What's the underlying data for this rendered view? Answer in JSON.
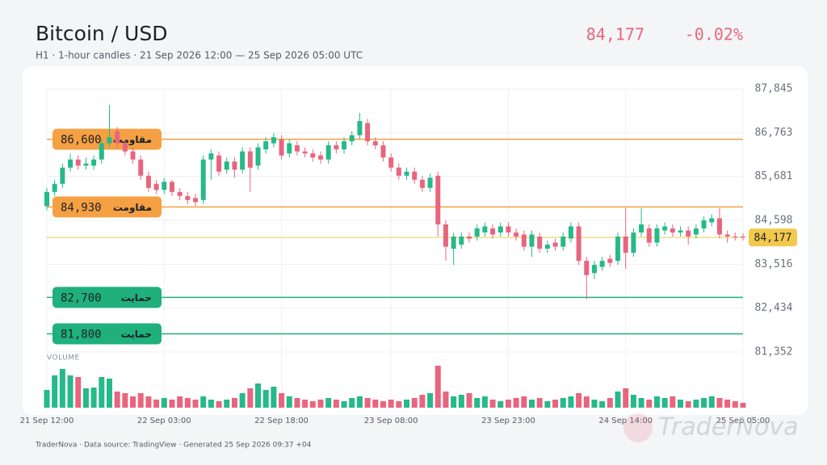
{
  "chart_data": {
    "type": "candlestick",
    "title": "Bitcoin / USD",
    "subtitle": "H1 · 1-hour candles · 21 Sep 2026 12:00 — 25 Sep 2026 05:00 UTC",
    "last_price": 84177,
    "last_price_label": "84,177",
    "change": -0.02,
    "change_label": "-0.02%",
    "volume_title": "VOLUME",
    "footer": "TraderNova · Data source: TradingView · Generated 25 Sep 2026 09:37 +04",
    "watermark": "TraderNova",
    "up_color": "#26b98a",
    "down_color": "#e8657e",
    "ylim": [
      81352,
      87845
    ],
    "yticks": [
      {
        "value": 87845,
        "label": "87,845"
      },
      {
        "value": 86763,
        "label": "86,763"
      },
      {
        "value": 85681,
        "label": "85,681"
      },
      {
        "value": 84598,
        "label": "84,598"
      },
      {
        "value": 83516,
        "label": "83,516"
      },
      {
        "value": 82434,
        "label": "82,434"
      },
      {
        "value": 81352,
        "label": "81,352"
      }
    ],
    "xlim": [
      0,
      89
    ],
    "xticks": [
      {
        "value": 0,
        "label": "21 Sep 12:00"
      },
      {
        "value": 15,
        "label": "22 Sep 03:00"
      },
      {
        "value": 30,
        "label": "22 Sep 18:00"
      },
      {
        "value": 44,
        "label": "23 Sep 08:00"
      },
      {
        "value": 59,
        "label": "23 Sep 23:00"
      },
      {
        "value": 74,
        "label": "24 Sep 14:00"
      },
      {
        "value": 89,
        "label": "25 Sep 05:00"
      }
    ],
    "grid": true,
    "levels": [
      {
        "name": "مقاومت",
        "value": 86600,
        "label": "86,600",
        "color": "#f5a043"
      },
      {
        "name": "مقاومت",
        "value": 84930,
        "label": "84,930",
        "color": "#f5a043"
      },
      {
        "name": "حمایت",
        "value": 82700,
        "label": "82,700",
        "color": "#1fb07e"
      },
      {
        "name": "حمایت",
        "value": 81800,
        "label": "81,800",
        "color": "#1fb07e"
      }
    ],
    "candles": [
      [
        84950,
        85400,
        84850,
        85300
      ],
      [
        85300,
        85600,
        85200,
        85500
      ],
      [
        85500,
        86000,
        85400,
        85900
      ],
      [
        85900,
        86250,
        85800,
        86100
      ],
      [
        86100,
        86200,
        85850,
        85950
      ],
      [
        85950,
        86150,
        85850,
        86000
      ],
      [
        85950,
        86200,
        85850,
        86100
      ],
      [
        86100,
        86600,
        86000,
        86500
      ],
      [
        86500,
        87450,
        86400,
        86650
      ],
      [
        86800,
        86900,
        86400,
        86500
      ],
      [
        86500,
        86600,
        86200,
        86300
      ],
      [
        86300,
        86400,
        86000,
        86100
      ],
      [
        86100,
        86200,
        85600,
        85700
      ],
      [
        85700,
        85800,
        85300,
        85400
      ],
      [
        85500,
        85600,
        85250,
        85350
      ],
      [
        85350,
        85650,
        85250,
        85550
      ],
      [
        85550,
        85600,
        85200,
        85300
      ],
      [
        85300,
        85400,
        85100,
        85200
      ],
      [
        85200,
        85300,
        85000,
        85100
      ],
      [
        85150,
        85250,
        84950,
        85050
      ],
      [
        85100,
        86200,
        85000,
        86100
      ],
      [
        86100,
        86350,
        85600,
        86250
      ],
      [
        86200,
        86300,
        85700,
        85800
      ],
      [
        85850,
        86150,
        85750,
        86050
      ],
      [
        86050,
        86150,
        85650,
        85850
      ],
      [
        85850,
        86400,
        85750,
        86300
      ],
      [
        86300,
        86400,
        85300,
        85900
      ],
      [
        85950,
        86500,
        85850,
        86400
      ],
      [
        86350,
        86650,
        86250,
        86550
      ],
      [
        86500,
        86750,
        86400,
        86650
      ],
      [
        86600,
        86700,
        86100,
        86200
      ],
      [
        86250,
        86600,
        86150,
        86500
      ],
      [
        86450,
        86550,
        86200,
        86300
      ],
      [
        86300,
        86400,
        86150,
        86250
      ],
      [
        86250,
        86350,
        86050,
        86150
      ],
      [
        86200,
        86300,
        86000,
        86100
      ],
      [
        86100,
        86550,
        86000,
        86450
      ],
      [
        86450,
        86550,
        86250,
        86350
      ],
      [
        86350,
        86650,
        86250,
        86550
      ],
      [
        86550,
        86800,
        86450,
        86700
      ],
      [
        86700,
        87250,
        86600,
        87050
      ],
      [
        87000,
        87100,
        86450,
        86550
      ],
      [
        86550,
        86650,
        86350,
        86450
      ],
      [
        86450,
        86550,
        86050,
        86150
      ],
      [
        86150,
        86250,
        85800,
        85900
      ],
      [
        85900,
        86000,
        85600,
        85700
      ],
      [
        85700,
        85900,
        85600,
        85800
      ],
      [
        85800,
        85900,
        85500,
        85600
      ],
      [
        85600,
        85700,
        85300,
        85400
      ],
      [
        85400,
        85750,
        85300,
        85650
      ],
      [
        85700,
        85800,
        84200,
        84500
      ],
      [
        84500,
        84600,
        83600,
        83950
      ],
      [
        83900,
        84300,
        83500,
        84200
      ],
      [
        84000,
        84300,
        83900,
        84200
      ],
      [
        84200,
        84300,
        84050,
        84150
      ],
      [
        84200,
        84500,
        84100,
        84400
      ],
      [
        84300,
        84550,
        84200,
        84450
      ],
      [
        84400,
        84500,
        84150,
        84250
      ],
      [
        84300,
        84550,
        84200,
        84450
      ],
      [
        84450,
        84550,
        84200,
        84300
      ],
      [
        84300,
        84400,
        84100,
        84200
      ],
      [
        84250,
        84350,
        83850,
        83950
      ],
      [
        83950,
        84350,
        83700,
        84250
      ],
      [
        84200,
        84300,
        83800,
        83900
      ],
      [
        83900,
        84100,
        83800,
        84000
      ],
      [
        84050,
        84150,
        83850,
        83950
      ],
      [
        83950,
        84300,
        83850,
        84200
      ],
      [
        84150,
        84550,
        84050,
        84450
      ],
      [
        84450,
        84550,
        83500,
        83600
      ],
      [
        83600,
        83700,
        82650,
        83250
      ],
      [
        83300,
        83600,
        83150,
        83500
      ],
      [
        83450,
        83700,
        83350,
        83600
      ],
      [
        83650,
        83750,
        83450,
        83550
      ],
      [
        83600,
        84300,
        83500,
        84200
      ],
      [
        84200,
        84900,
        83400,
        83800
      ],
      [
        83800,
        84400,
        83700,
        84300
      ],
      [
        84300,
        84900,
        84200,
        84500
      ],
      [
        84400,
        84500,
        83950,
        84050
      ],
      [
        84050,
        84500,
        83950,
        84400
      ],
      [
        84350,
        84550,
        84250,
        84450
      ],
      [
        84400,
        84500,
        84200,
        84300
      ],
      [
        84300,
        84450,
        84200,
        84350
      ],
      [
        84350,
        84450,
        84000,
        84200
      ],
      [
        84250,
        84500,
        84150,
        84400
      ],
      [
        84400,
        84700,
        84300,
        84600
      ],
      [
        84550,
        84750,
        84450,
        84650
      ],
      [
        84650,
        84900,
        84150,
        84250
      ],
      [
        84250,
        84350,
        84050,
        84200
      ],
      [
        84200,
        84300,
        84100,
        84180
      ],
      [
        84200,
        84280,
        84100,
        84177
      ]
    ],
    "volume_ylim": [
      0,
      55
    ],
    "volume": [
      22,
      40,
      48,
      40,
      38,
      24,
      25,
      38,
      36,
      20,
      18,
      14,
      18,
      14,
      10,
      12,
      10,
      14,
      12,
      10,
      14,
      10,
      8,
      10,
      12,
      18,
      24,
      30,
      22,
      26,
      18,
      14,
      12,
      10,
      8,
      10,
      12,
      10,
      8,
      12,
      14,
      12,
      10,
      8,
      10,
      8,
      10,
      12,
      16,
      18,
      52,
      20,
      14,
      16,
      18,
      12,
      14,
      10,
      8,
      10,
      12,
      14,
      10,
      12,
      8,
      10,
      12,
      14,
      18,
      14,
      10,
      8,
      12,
      20,
      24,
      16,
      12,
      10,
      14,
      12,
      14,
      10,
      8,
      10,
      12,
      14,
      12,
      10,
      8,
      6
    ]
  }
}
